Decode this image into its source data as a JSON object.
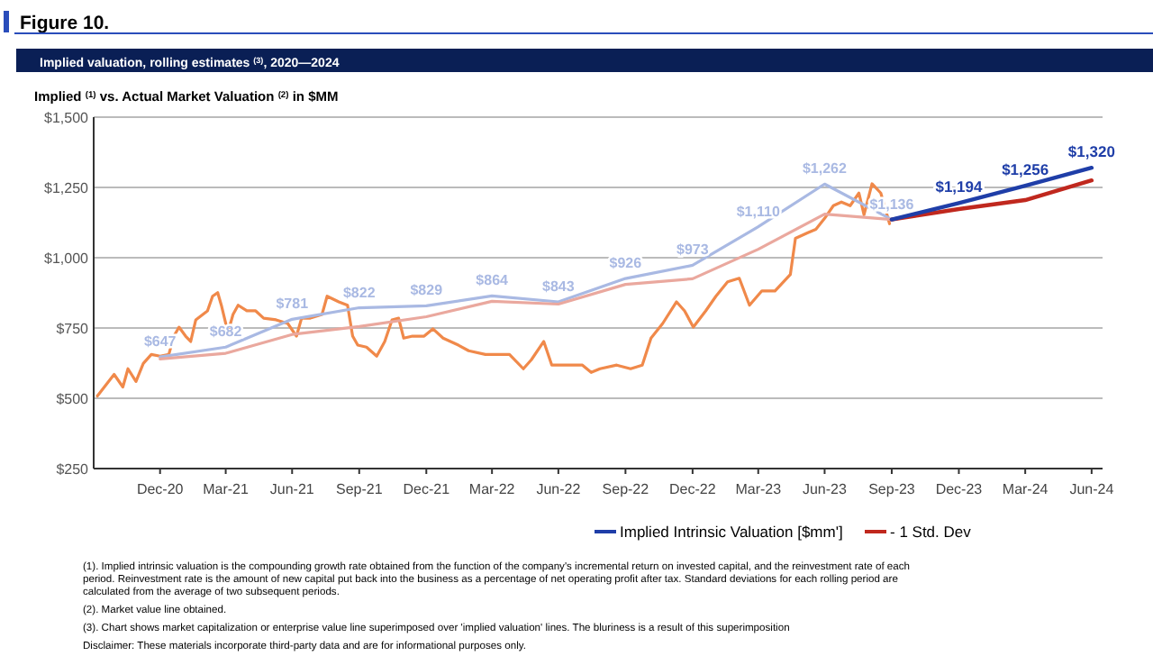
{
  "chart_data": {
    "type": "line",
    "title": "Figure 10.",
    "subtitle": "Implied valuation, rolling estimates $^{(3)}$, 2020—2024",
    "ylabel": "Implied $^{(1)}$ vs. Actual Market Valuation $^{(2)}$ in $MM",
    "xlim": [
      "2020-10-01",
      "2024-07-15"
    ],
    "ylim": [
      250,
      1500
    ],
    "yticks": [
      {
        "value": 250,
        "label": "$250"
      },
      {
        "value": 500,
        "label": "$500"
      },
      {
        "value": 750,
        "label": "$750"
      },
      {
        "value": 1000,
        "label": "$1,000"
      },
      {
        "value": 1250,
        "label": "$1,250"
      },
      {
        "value": 1500,
        "label": "$1,500"
      }
    ],
    "xticks": [
      {
        "value": "2020-12-31",
        "label": "Dec-20"
      },
      {
        "value": "2021-03-31",
        "label": "Mar-21"
      },
      {
        "value": "2021-06-30",
        "label": "Jun-21"
      },
      {
        "value": "2021-09-30",
        "label": "Sep-21"
      },
      {
        "value": "2021-12-31",
        "label": "Dec-21"
      },
      {
        "value": "2022-03-31",
        "label": "Mar-22"
      },
      {
        "value": "2022-06-30",
        "label": "Jun-22"
      },
      {
        "value": "2022-09-30",
        "label": "Sep-22"
      },
      {
        "value": "2022-12-31",
        "label": "Dec-22"
      },
      {
        "value": "2023-03-31",
        "label": "Mar-23"
      },
      {
        "value": "2023-06-30",
        "label": "Jun-23"
      },
      {
        "value": "2023-09-30",
        "label": "Sep-23"
      },
      {
        "value": "2023-12-31",
        "label": "Dec-23"
      },
      {
        "value": "2024-03-31",
        "label": "Mar-24"
      },
      {
        "value": "2024-06-30",
        "label": "Jun-24"
      }
    ],
    "grid": "y",
    "legend": "bottom",
    "series": [
      {
        "color": "#f0894a",
        "x": [
          "2020-10-06",
          "2020-10-29",
          "2020-11-10",
          "2020-11-17",
          "2020-11-28",
          "2020-12-08",
          "2020-12-19",
          "2020-12-31",
          "2021-01-12",
          "2021-01-19",
          "2021-01-26",
          "2021-02-04",
          "2021-02-11",
          "2021-02-18",
          "2021-03-06",
          "2021-03-13",
          "2021-03-20",
          "2021-03-25",
          "2021-04-03",
          "2021-04-10",
          "2021-04-17",
          "2021-04-29",
          "2021-05-11",
          "2021-05-22",
          "2021-06-08",
          "2021-06-24",
          "2021-07-06",
          "2021-07-13",
          "2021-07-25",
          "2021-08-10",
          "2021-08-17",
          "2021-09-02",
          "2021-09-14",
          "2021-09-21",
          "2021-09-28",
          "2021-10-10",
          "2021-10-24",
          "2021-11-04",
          "2021-11-14",
          "2021-11-23",
          "2021-11-30",
          "2021-12-12",
          "2021-12-28",
          "2022-01-09",
          "2022-01-23",
          "2022-02-13",
          "2022-02-27",
          "2022-03-22",
          "2022-04-24",
          "2022-05-13",
          "2022-05-24",
          "2022-06-10",
          "2022-06-21",
          "2022-07-10",
          "2022-08-02",
          "2022-08-14",
          "2022-08-26",
          "2022-09-18",
          "2022-10-07",
          "2022-10-23",
          "2022-11-04",
          "2022-11-20",
          "2022-12-09",
          "2022-12-20",
          "2023-01-01",
          "2023-01-18",
          "2023-02-01",
          "2023-02-17",
          "2023-03-05",
          "2023-03-19",
          "2023-04-05",
          "2023-04-23",
          "2023-05-14",
          "2023-05-21",
          "2023-06-07",
          "2023-06-18",
          "2023-06-30",
          "2023-07-12",
          "2023-07-23",
          "2023-08-04",
          "2023-08-16",
          "2023-08-23",
          "2023-09-03",
          "2023-09-15",
          "2023-09-27"
        ],
        "values": [
          508,
          585,
          540,
          605,
          560,
          624,
          656,
          650,
          656,
          721,
          753,
          721,
          702,
          779,
          811,
          863,
          876,
          831,
          734,
          798,
          831,
          811,
          811,
          785,
          779,
          766,
          721,
          785,
          785,
          798,
          863,
          843,
          831,
          721,
          689,
          682,
          650,
          702,
          779,
          785,
          714,
          721,
          721,
          747,
          714,
          689,
          669,
          656,
          656,
          605,
          637,
          702,
          618,
          618,
          618,
          592,
          605,
          618,
          605,
          618,
          714,
          766,
          843,
          811,
          753,
          811,
          863,
          914,
          927,
          831,
          882,
          882,
          940,
          1069,
          1089,
          1101,
          1140,
          1185,
          1198,
          1185,
          1230,
          1153,
          1263,
          1230,
          1121
        ]
      },
      {
        "color": "#a9b9e3",
        "x": [
          "2020-12-31",
          "2021-03-31",
          "2021-06-30",
          "2021-09-30",
          "2021-12-31",
          "2022-03-31",
          "2022-06-30",
          "2022-09-30",
          "2022-12-31",
          "2023-03-31",
          "2023-06-30",
          "2023-09-30"
        ],
        "values": [
          647,
          682,
          781,
          822,
          829,
          864,
          843,
          926,
          973,
          1110,
          1262,
          1136
        ],
        "value_labels": [
          "$647",
          "$682",
          "$781",
          "$822",
          "$829",
          "$864",
          "$843",
          "$926",
          "$973",
          "$1,110",
          "$1,262",
          "$1,136"
        ]
      },
      {
        "color": "#eaa89e",
        "x": [
          "2020-12-31",
          "2021-03-31",
          "2021-06-30",
          "2021-09-30",
          "2021-12-31",
          "2022-03-31",
          "2022-06-30",
          "2022-09-30",
          "2022-12-31",
          "2023-03-31",
          "2023-06-30",
          "2023-09-30"
        ],
        "values": [
          640,
          660,
          727,
          755,
          790,
          845,
          835,
          905,
          925,
          1030,
          1155,
          1136
        ]
      },
      {
        "name": "- 1 Std. Dev",
        "color": "#c0281e",
        "x": [
          "2023-09-30",
          "2023-12-31",
          "2024-03-31",
          "2024-06-30"
        ],
        "values": [
          1136,
          1173,
          1205,
          1275
        ]
      },
      {
        "name": "Implied Intrinsic Valuation [$mm']",
        "color": "#1f3ea8",
        "x": [
          "2023-09-30",
          "2023-12-31",
          "2024-03-31",
          "2024-06-30"
        ],
        "values": [
          1136,
          1194,
          1256,
          1320
        ],
        "value_labels": [
          null,
          "$1,194",
          "$1,256",
          "$1,320"
        ]
      }
    ],
    "annotations": [
      "(1). Implied intrinsic valuation is the compounding growth rate obtained from the function of the company's incremental return on invested capital, and the reinvestment rate of each period. Reinvestment rate is the amount of new capital put back into the business as a percentage of net operating profit after tax. Standard deviations for each rolling period are calculated from the average of two subsequent periods.",
      "(2). Market value line obtained.",
      "(3). Chart shows market capitalization or enterprise value line superimposed over 'implied valuation' lines. The bluriness is a result of this superimposition",
      "Disclaimer: These materials incorporate third-party data and are for informational purposes only."
    ]
  }
}
